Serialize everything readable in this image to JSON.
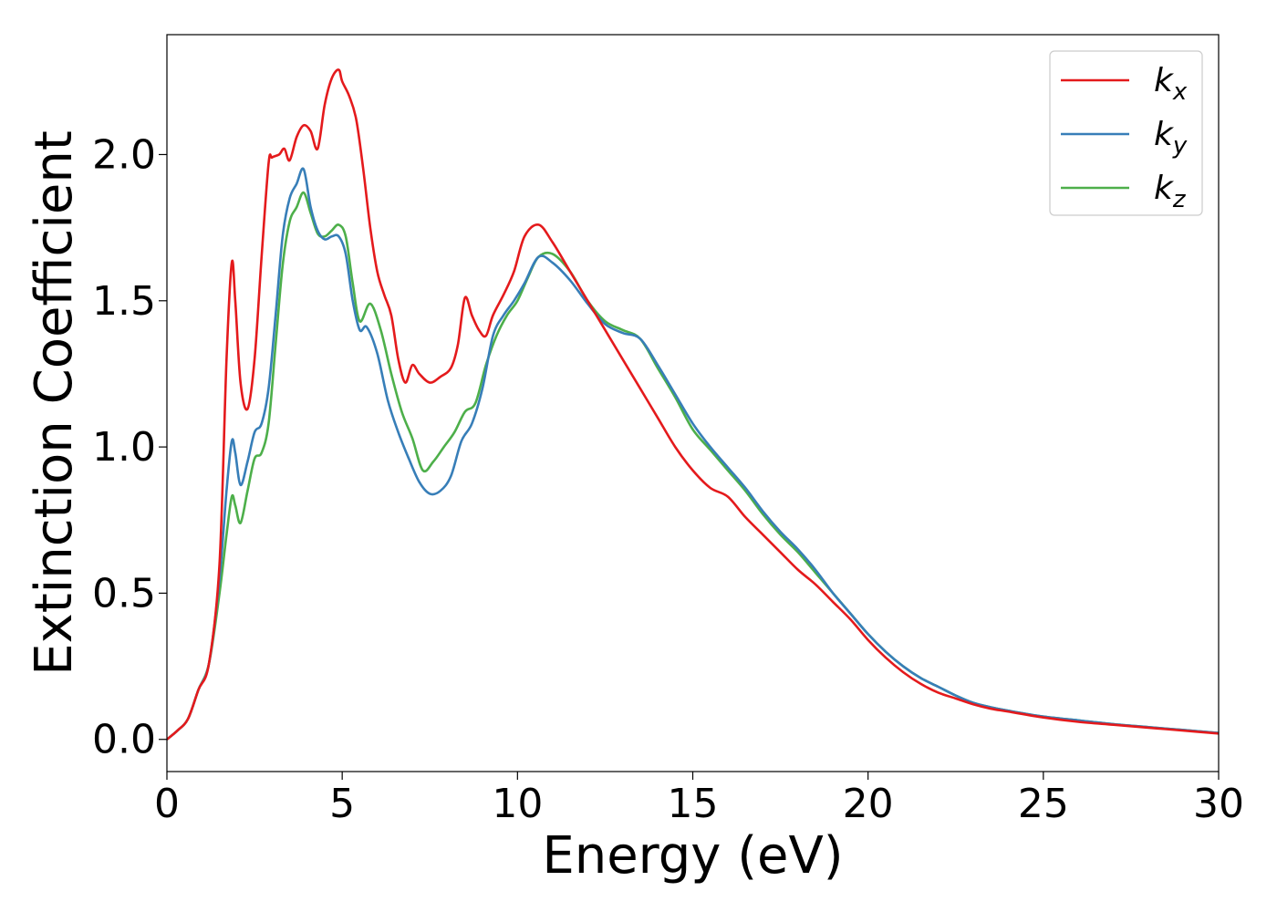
{
  "chart_data": {
    "type": "line",
    "xlabel": "Energy (eV)",
    "ylabel": "Extinction Coefficient",
    "xlim": [
      0,
      30
    ],
    "ylim": [
      -0.11,
      2.41
    ],
    "xticks": [
      0,
      5,
      10,
      15,
      20,
      25,
      30
    ],
    "yticks": [
      0.0,
      0.5,
      1.0,
      1.5,
      2.0
    ],
    "grid": false,
    "legend_position": "top-right",
    "series": [
      {
        "name": "k",
        "subscript": "x",
        "color": "#e41a1c",
        "x": [
          0,
          0.3,
          0.6,
          0.9,
          1.2,
          1.5,
          1.7,
          1.85,
          1.95,
          2.1,
          2.3,
          2.5,
          2.7,
          2.9,
          3.0,
          3.2,
          3.35,
          3.5,
          3.7,
          3.9,
          4.1,
          4.3,
          4.5,
          4.7,
          4.9,
          5.0,
          5.2,
          5.4,
          5.6,
          5.8,
          6.0,
          6.2,
          6.4,
          6.6,
          6.8,
          7.0,
          7.2,
          7.5,
          7.8,
          8.1,
          8.3,
          8.5,
          8.7,
          8.9,
          9.1,
          9.3,
          9.6,
          9.9,
          10.2,
          10.6,
          11.0,
          11.5,
          12.0,
          12.5,
          13.0,
          13.5,
          14.0,
          14.5,
          15.0,
          15.5,
          16.0,
          16.5,
          17.0,
          17.5,
          18.0,
          18.5,
          19.0,
          19.5,
          20.0,
          20.5,
          21.0,
          21.5,
          22.0,
          22.5,
          23.0,
          23.5,
          24.0,
          25.0,
          26.0,
          27.0,
          28.0,
          29.0,
          30.0
        ],
        "values": [
          0.0,
          0.03,
          0.07,
          0.17,
          0.26,
          0.6,
          1.3,
          1.63,
          1.5,
          1.22,
          1.13,
          1.3,
          1.65,
          1.97,
          1.99,
          2.0,
          2.02,
          1.98,
          2.06,
          2.1,
          2.08,
          2.02,
          2.17,
          2.26,
          2.29,
          2.25,
          2.2,
          2.12,
          1.95,
          1.75,
          1.6,
          1.52,
          1.45,
          1.3,
          1.22,
          1.28,
          1.25,
          1.22,
          1.24,
          1.27,
          1.35,
          1.51,
          1.45,
          1.4,
          1.38,
          1.45,
          1.52,
          1.6,
          1.72,
          1.76,
          1.7,
          1.6,
          1.5,
          1.4,
          1.3,
          1.2,
          1.1,
          1.0,
          0.92,
          0.86,
          0.83,
          0.76,
          0.7,
          0.64,
          0.58,
          0.53,
          0.47,
          0.41,
          0.34,
          0.28,
          0.23,
          0.19,
          0.16,
          0.14,
          0.12,
          0.105,
          0.095,
          0.075,
          0.06,
          0.05,
          0.04,
          0.03,
          0.02
        ]
      },
      {
        "name": "k",
        "subscript": "y",
        "color": "#377eb8",
        "x": [
          0,
          0.3,
          0.6,
          0.9,
          1.2,
          1.5,
          1.7,
          1.85,
          1.95,
          2.1,
          2.3,
          2.5,
          2.7,
          2.9,
          3.1,
          3.3,
          3.5,
          3.7,
          3.9,
          4.1,
          4.3,
          4.5,
          4.7,
          4.9,
          5.1,
          5.3,
          5.5,
          5.7,
          6.0,
          6.3,
          6.6,
          6.9,
          7.2,
          7.5,
          7.8,
          8.1,
          8.4,
          8.7,
          9.0,
          9.3,
          9.6,
          9.9,
          10.2,
          10.6,
          11.0,
          11.5,
          12.0,
          12.5,
          13.0,
          13.5,
          14.0,
          14.5,
          15.0,
          15.5,
          16.0,
          16.5,
          17.0,
          17.5,
          18.0,
          18.5,
          19.0,
          19.5,
          20.0,
          20.5,
          21.0,
          21.5,
          22.0,
          22.5,
          23.0,
          23.5,
          24.0,
          25.0,
          26.0,
          27.0,
          28.0,
          29.0,
          30.0
        ],
        "values": [
          0.0,
          0.03,
          0.07,
          0.17,
          0.26,
          0.55,
          0.85,
          1.02,
          0.98,
          0.87,
          0.95,
          1.05,
          1.08,
          1.2,
          1.45,
          1.72,
          1.85,
          1.9,
          1.95,
          1.82,
          1.74,
          1.71,
          1.72,
          1.72,
          1.66,
          1.5,
          1.4,
          1.41,
          1.32,
          1.16,
          1.05,
          0.96,
          0.88,
          0.84,
          0.85,
          0.9,
          1.02,
          1.08,
          1.2,
          1.38,
          1.45,
          1.5,
          1.56,
          1.65,
          1.63,
          1.57,
          1.49,
          1.42,
          1.39,
          1.37,
          1.28,
          1.18,
          1.08,
          1.0,
          0.93,
          0.86,
          0.78,
          0.71,
          0.65,
          0.58,
          0.5,
          0.43,
          0.36,
          0.3,
          0.25,
          0.21,
          0.18,
          0.15,
          0.125,
          0.11,
          0.098,
          0.078,
          0.065,
          0.052,
          0.042,
          0.032,
          0.022
        ]
      },
      {
        "name": "k",
        "subscript": "z",
        "color": "#4daf4a",
        "x": [
          0,
          0.3,
          0.6,
          0.9,
          1.2,
          1.5,
          1.7,
          1.85,
          1.95,
          2.1,
          2.3,
          2.5,
          2.7,
          2.9,
          3.1,
          3.3,
          3.5,
          3.7,
          3.9,
          4.1,
          4.3,
          4.5,
          4.7,
          4.9,
          5.1,
          5.3,
          5.5,
          5.8,
          6.1,
          6.4,
          6.7,
          7.0,
          7.3,
          7.6,
          7.9,
          8.2,
          8.5,
          8.8,
          9.1,
          9.4,
          9.7,
          10.0,
          10.3,
          10.6,
          11.0,
          11.5,
          12.0,
          12.5,
          13.0,
          13.5,
          14.0,
          14.5,
          15.0,
          15.5,
          16.0,
          16.5,
          17.0,
          17.5,
          18.0,
          18.5,
          19.0,
          19.5,
          20.0,
          20.5,
          21.0,
          21.5,
          22.0,
          22.5,
          23.0,
          23.5,
          24.0,
          25.0,
          26.0,
          27.0,
          28.0,
          29.0,
          30.0
        ],
        "values": [
          0.0,
          0.03,
          0.07,
          0.17,
          0.26,
          0.5,
          0.7,
          0.83,
          0.8,
          0.74,
          0.85,
          0.96,
          0.98,
          1.08,
          1.35,
          1.62,
          1.77,
          1.82,
          1.87,
          1.8,
          1.73,
          1.72,
          1.74,
          1.76,
          1.72,
          1.56,
          1.43,
          1.49,
          1.4,
          1.25,
          1.12,
          1.03,
          0.92,
          0.95,
          1.0,
          1.05,
          1.12,
          1.15,
          1.28,
          1.38,
          1.45,
          1.5,
          1.58,
          1.65,
          1.66,
          1.6,
          1.5,
          1.43,
          1.4,
          1.37,
          1.27,
          1.17,
          1.06,
          0.99,
          0.92,
          0.85,
          0.77,
          0.7,
          0.64,
          0.57,
          0.5,
          0.43,
          0.36,
          0.3,
          0.25,
          0.21,
          0.18,
          0.15,
          0.125,
          0.11,
          0.098,
          0.078,
          0.065,
          0.052,
          0.042,
          0.032,
          0.022
        ]
      }
    ]
  }
}
